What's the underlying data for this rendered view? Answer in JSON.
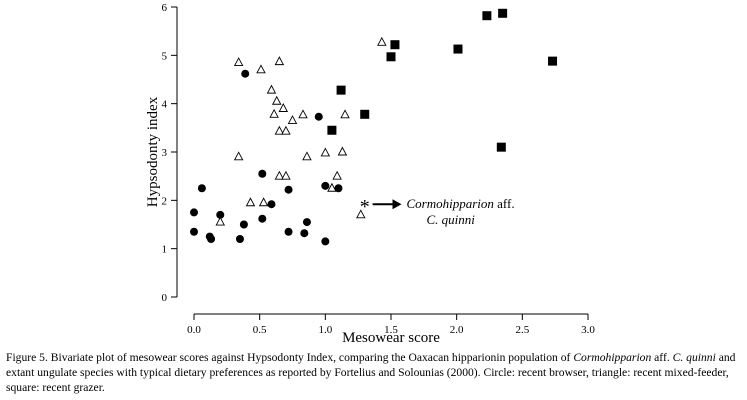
{
  "chart_data": {
    "type": "scatter",
    "xlabel": "Mesowear score",
    "ylabel": "Hypsodonty index",
    "xlim": [
      0,
      3
    ],
    "ylim": [
      0,
      6
    ],
    "xticks": [
      "0.0",
      "0.5",
      "1.0",
      "1.5",
      "2.0",
      "2.5",
      "3.0"
    ],
    "yticks": [
      "0",
      "1",
      "2",
      "3",
      "4",
      "5",
      "6"
    ],
    "grid": false,
    "series": [
      {
        "marker": "circle",
        "color": "#000000",
        "points": [
          [
            0.0,
            1.75
          ],
          [
            0.06,
            2.25
          ],
          [
            0.0,
            1.35
          ],
          [
            0.12,
            1.25
          ],
          [
            0.13,
            1.2
          ],
          [
            0.2,
            1.7
          ],
          [
            0.35,
            1.2
          ],
          [
            0.38,
            1.5
          ],
          [
            0.39,
            4.62
          ],
          [
            0.52,
            2.55
          ],
          [
            0.52,
            1.62
          ],
          [
            0.59,
            1.92
          ],
          [
            0.72,
            2.22
          ],
          [
            0.72,
            1.35
          ],
          [
            0.84,
            1.32
          ],
          [
            0.86,
            1.55
          ],
          [
            0.95,
            3.73
          ],
          [
            1.0,
            2.3
          ],
          [
            1.0,
            1.15
          ],
          [
            1.1,
            2.25
          ]
        ]
      },
      {
        "marker": "triangle",
        "color": "#000000",
        "points": [
          [
            0.34,
            4.85
          ],
          [
            0.51,
            4.7
          ],
          [
            0.65,
            4.87
          ],
          [
            0.59,
            4.28
          ],
          [
            0.63,
            4.05
          ],
          [
            0.68,
            3.9
          ],
          [
            0.61,
            3.78
          ],
          [
            0.75,
            3.65
          ],
          [
            0.83,
            3.77
          ],
          [
            0.65,
            3.43
          ],
          [
            0.7,
            3.43
          ],
          [
            0.34,
            2.9
          ],
          [
            0.86,
            2.9
          ],
          [
            1.0,
            2.98
          ],
          [
            1.13,
            3.0
          ],
          [
            1.15,
            3.77
          ],
          [
            0.43,
            1.95
          ],
          [
            0.53,
            1.95
          ],
          [
            0.65,
            2.5
          ],
          [
            0.7,
            2.5
          ],
          [
            1.09,
            2.5
          ],
          [
            1.05,
            2.25
          ],
          [
            1.43,
            5.27
          ],
          [
            1.27,
            1.7
          ],
          [
            0.2,
            1.55
          ]
        ]
      },
      {
        "marker": "square",
        "color": "#000000",
        "points": [
          [
            1.53,
            5.22
          ],
          [
            1.5,
            4.97
          ],
          [
            2.01,
            5.13
          ],
          [
            2.23,
            5.82
          ],
          [
            2.35,
            5.87
          ],
          [
            2.73,
            4.88
          ],
          [
            1.12,
            4.28
          ],
          [
            1.05,
            3.45
          ],
          [
            1.3,
            3.78
          ],
          [
            2.34,
            3.1
          ]
        ]
      }
    ],
    "annotations": [
      {
        "text": "*",
        "x": 1.3,
        "y": 1.92
      },
      {
        "text_italic": "Cormohipparion",
        "text_roman": " aff.",
        "line2": "C. quinni",
        "arrow_from": [
          1.36,
          1.92
        ],
        "arrow_to": [
          1.58,
          1.92
        ]
      }
    ]
  },
  "caption": {
    "part1": "Figure 5. Bivariate plot of mesowear scores against Hypsodonty Index, comparing the Oaxacan hipparionin population of ",
    "italic1": "Cormohipparion",
    "part2": " aff. ",
    "italic2": "C. quinni",
    "part3": " and extant ungulate species with typical dietary preferences as reported by Fortelius and Solounias (2000). Circle: recent browser, triangle: recent mixed-feeder, square: recent grazer."
  }
}
